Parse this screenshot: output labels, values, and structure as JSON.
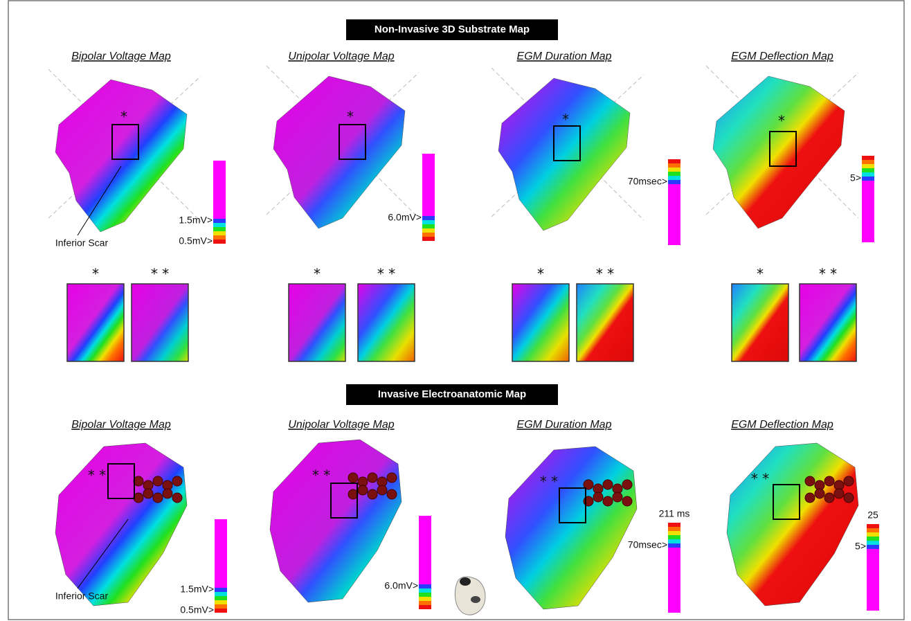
{
  "sections": [
    {
      "title": "Non-Invasive 3D Substrate Map",
      "maps": [
        {
          "title": "Bipolar  Voltage Map",
          "marker": "*",
          "scale_labels": [
            "1.5mV>",
            "0.5mV>"
          ],
          "annotation": "Inferior Scar"
        },
        {
          "title": "Unipolar Voltage Map",
          "marker": "*",
          "scale_labels": [
            "6.0mV>"
          ]
        },
        {
          "title": "EGM Duration Map",
          "marker": "*",
          "scale_labels": [
            "70msec>"
          ]
        },
        {
          "title": "EGM Deflection Map",
          "marker": "*",
          "scale_labels": [
            "5>"
          ]
        }
      ],
      "insets": [
        {
          "labels": [
            "*",
            "* *"
          ]
        },
        {
          "labels": [
            "*",
            "* *"
          ]
        },
        {
          "labels": [
            "*",
            "* *"
          ]
        },
        {
          "labels": [
            "*",
            "* *"
          ]
        }
      ]
    },
    {
      "title": "Invasive Electroanatomic Map",
      "maps": [
        {
          "title": "Bipolar  Voltage Map",
          "marker": "* *",
          "scale_labels": [
            "1.5mV>",
            "0.5mV>"
          ],
          "annotation": "Inferior Scar"
        },
        {
          "title": "Unipolar Voltage Map",
          "marker": "* *",
          "scale_labels": [
            "6.0mV>"
          ]
        },
        {
          "title": "EGM Duration Map",
          "marker": "* *",
          "scale_labels": [
            "211 ms",
            "70msec>"
          ]
        },
        {
          "title": "EGM Deflection Map",
          "marker": "* *",
          "scale_labels": [
            "25",
            "5>"
          ]
        }
      ]
    }
  ]
}
